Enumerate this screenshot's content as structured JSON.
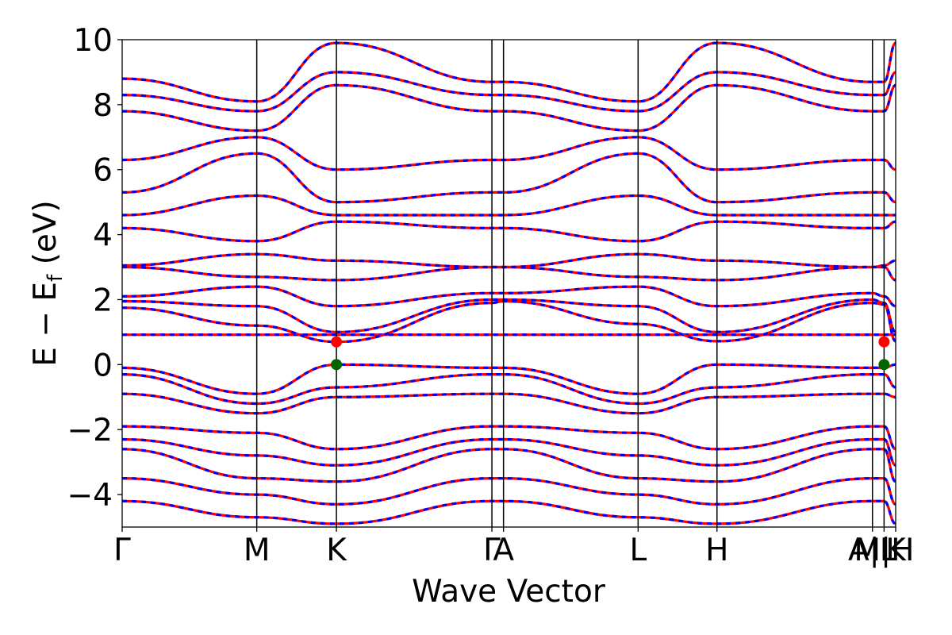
{
  "chart_data": {
    "type": "line",
    "title": "",
    "xlabel": "Wave Vector",
    "ylabel": {
      "base": "E − E",
      "subscript": "f",
      "suffix": " (eV)"
    },
    "ylim": [
      -5,
      10
    ],
    "yticks": [
      -4,
      -2,
      0,
      2,
      4,
      6,
      8,
      10
    ],
    "ytick_labels": [
      "−4",
      "−2",
      "0",
      "2",
      "4",
      "6",
      "8",
      "10"
    ],
    "x_range": [
      0,
      1
    ],
    "high_symmetry_points": [
      {
        "label": "Γ",
        "x": 0.0
      },
      {
        "label": "M",
        "x": 0.174
      },
      {
        "label": "K",
        "x": 0.277
      },
      {
        "label": "Γ",
        "x": 0.478
      },
      {
        "label": "A",
        "x": 0.493
      },
      {
        "label": "L",
        "x": 0.667
      },
      {
        "label": "H",
        "x": 0.769
      },
      {
        "label": "A|L",
        "x": 0.97
      },
      {
        "label": "M|H",
        "x": 0.985
      },
      {
        "label": "K",
        "x": 1.0
      }
    ],
    "flat_band_energy": 0.92,
    "series_styles": [
      {
        "color": "#ff0000",
        "style": "solid"
      },
      {
        "color": "#0000ff",
        "style": "dashed"
      }
    ],
    "series": [
      {
        "name": "",
        "style": 0,
        "valence": false,
        "values": [
          0.92,
          0.92,
          0.92,
          0.92,
          0.92,
          0.92,
          0.92,
          0.92,
          0.92,
          0.92
        ]
      },
      {
        "name": "",
        "style": 0,
        "valence": false,
        "values": [
          1.75,
          1.2,
          0.7,
          1.9,
          1.95,
          1.25,
          0.72,
          1.9,
          1.85,
          0.72
        ]
      },
      {
        "name": "",
        "style": 0,
        "valence": false,
        "values": [
          1.95,
          1.8,
          1.0,
          2.0,
          2.0,
          1.8,
          1.0,
          2.0,
          1.9,
          1.0
        ]
      },
      {
        "name": "",
        "style": 0,
        "valence": false,
        "values": [
          2.1,
          2.4,
          1.8,
          2.2,
          2.2,
          2.4,
          1.8,
          2.2,
          2.1,
          1.8
        ]
      },
      {
        "name": "",
        "style": 0,
        "valence": false,
        "values": [
          3.0,
          2.7,
          2.6,
          3.0,
          3.0,
          2.7,
          2.6,
          3.0,
          3.0,
          2.6
        ]
      },
      {
        "name": "",
        "style": 0,
        "valence": false,
        "values": [
          3.05,
          3.4,
          3.2,
          3.0,
          3.0,
          3.4,
          3.2,
          3.0,
          3.05,
          3.2
        ]
      },
      {
        "name": "",
        "style": 0,
        "valence": false,
        "values": [
          4.2,
          3.8,
          4.4,
          4.2,
          4.2,
          3.8,
          4.4,
          4.2,
          4.2,
          4.4
        ]
      },
      {
        "name": "",
        "style": 0,
        "valence": false,
        "values": [
          4.6,
          5.2,
          4.6,
          4.6,
          4.6,
          5.2,
          4.6,
          4.6,
          4.6,
          4.6
        ]
      },
      {
        "name": "",
        "style": 0,
        "valence": false,
        "values": [
          5.3,
          6.5,
          5.0,
          5.3,
          5.3,
          6.5,
          5.0,
          5.3,
          5.3,
          5.0
        ]
      },
      {
        "name": "",
        "style": 0,
        "valence": false,
        "values": [
          6.3,
          7.0,
          6.0,
          6.3,
          6.3,
          7.0,
          6.0,
          6.3,
          6.3,
          6.0
        ]
      },
      {
        "name": "",
        "style": 0,
        "valence": false,
        "values": [
          7.8,
          7.2,
          8.6,
          7.8,
          7.8,
          7.2,
          8.6,
          7.8,
          7.8,
          8.6
        ]
      },
      {
        "name": "",
        "style": 0,
        "valence": false,
        "values": [
          8.3,
          7.8,
          9.0,
          8.3,
          8.3,
          7.8,
          9.0,
          8.3,
          8.3,
          9.0
        ]
      },
      {
        "name": "",
        "style": 0,
        "valence": false,
        "values": [
          8.8,
          8.1,
          9.9,
          8.7,
          8.7,
          8.1,
          9.9,
          8.7,
          8.7,
          9.9
        ]
      },
      {
        "name": "",
        "style": 0,
        "valence": true,
        "values": [
          -0.1,
          -0.9,
          0.0,
          -0.1,
          -0.1,
          -0.9,
          0.0,
          -0.1,
          -0.1,
          0.0
        ]
      },
      {
        "name": "",
        "style": 0,
        "valence": true,
        "values": [
          -0.3,
          -1.2,
          -0.7,
          -0.3,
          -0.3,
          -1.2,
          -0.7,
          -0.3,
          -0.3,
          -0.7
        ]
      },
      {
        "name": "",
        "style": 0,
        "valence": true,
        "values": [
          -0.9,
          -1.5,
          -1.0,
          -0.9,
          -0.9,
          -1.5,
          -1.0,
          -0.9,
          -0.9,
          -1.0
        ]
      },
      {
        "name": "",
        "style": 0,
        "valence": true,
        "values": [
          -1.9,
          -2.1,
          -2.6,
          -1.9,
          -1.9,
          -2.1,
          -2.6,
          -1.9,
          -1.9,
          -2.6
        ]
      },
      {
        "name": "",
        "style": 0,
        "valence": true,
        "values": [
          -2.3,
          -2.8,
          -3.1,
          -2.3,
          -2.3,
          -2.8,
          -3.1,
          -2.3,
          -2.3,
          -3.1
        ]
      },
      {
        "name": "",
        "style": 0,
        "valence": true,
        "values": [
          -2.6,
          -3.5,
          -3.6,
          -2.6,
          -2.6,
          -3.5,
          -3.6,
          -2.6,
          -2.6,
          -3.6
        ]
      },
      {
        "name": "",
        "style": 0,
        "valence": true,
        "values": [
          -3.5,
          -4.0,
          -4.3,
          -3.5,
          -3.5,
          -4.0,
          -4.3,
          -3.5,
          -3.5,
          -4.3
        ]
      },
      {
        "name": "",
        "style": 0,
        "valence": true,
        "values": [
          -4.2,
          -4.7,
          -4.9,
          -4.2,
          -4.2,
          -4.7,
          -4.9,
          -4.2,
          -4.2,
          -4.9
        ]
      }
    ],
    "points": [
      {
        "label": "",
        "x": 0.277,
        "y": 0.0,
        "color": "#006400"
      },
      {
        "label": "",
        "x": 0.277,
        "y": 0.7,
        "color": "#ff0000"
      },
      {
        "label": "",
        "x": 0.985,
        "y": 0.0,
        "color": "#006400"
      },
      {
        "label": "",
        "x": 0.985,
        "y": 0.7,
        "color": "#ff0000"
      }
    ],
    "grid": false,
    "legend": "none"
  }
}
